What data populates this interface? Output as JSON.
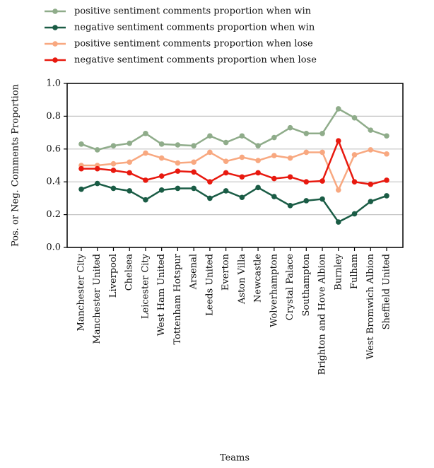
{
  "chart_data": {
    "type": "line",
    "x_label": "Teams",
    "y_label": "Pos. or Neg. Comments Proportion",
    "categories": [
      "Manchester City",
      "Manchester United",
      "Liverpool",
      "Chelsea",
      "Leicester City",
      "West Ham United",
      "Tottenham Hotspur",
      "Arsenal",
      "Leeds United",
      "Everton",
      "Aston Villa",
      "Newcastle",
      "Wolverhampton",
      "Crystal Palace",
      "Southampton",
      "Brighton and Hove Albion",
      "Burnley",
      "Fulham",
      "West Bromwich Albion",
      "Sheffield United"
    ],
    "series": [
      {
        "name": "positive sentiment comments proportion when win",
        "color": "#8fac8a",
        "values": [
          0.63,
          0.595,
          0.62,
          0.635,
          0.695,
          0.63,
          0.625,
          0.62,
          0.68,
          0.64,
          0.68,
          0.62,
          0.67,
          0.73,
          0.695,
          0.695,
          0.845,
          0.79,
          0.715,
          0.68
        ]
      },
      {
        "name": "negative sentiment comments proportion when win",
        "color": "#1a5c45",
        "values": [
          0.355,
          0.39,
          0.36,
          0.345,
          0.29,
          0.35,
          0.36,
          0.36,
          0.3,
          0.345,
          0.305,
          0.365,
          0.31,
          0.255,
          0.285,
          0.295,
          0.155,
          0.205,
          0.28,
          0.315
        ]
      },
      {
        "name": "positive sentiment comments proportion when lose",
        "color": "#f8a880",
        "values": [
          0.5,
          0.5,
          0.51,
          0.52,
          0.575,
          0.545,
          0.515,
          0.52,
          0.58,
          0.525,
          0.55,
          0.53,
          0.56,
          0.545,
          0.58,
          0.58,
          0.35,
          0.565,
          0.595,
          0.57
        ]
      },
      {
        "name": "negative sentiment comments proportion when lose",
        "color": "#e8190f",
        "values": [
          0.48,
          0.48,
          0.47,
          0.455,
          0.41,
          0.435,
          0.465,
          0.46,
          0.4,
          0.455,
          0.43,
          0.455,
          0.42,
          0.43,
          0.4,
          0.405,
          0.65,
          0.4,
          0.385,
          0.41
        ]
      }
    ],
    "ylim": [
      0,
      1
    ],
    "yticks": [
      {
        "value": 0,
        "label": "0.0"
      },
      0.2,
      0.4,
      0.6,
      0.8,
      {
        "value": 1,
        "label": "1.0"
      }
    ],
    "grid": true
  }
}
